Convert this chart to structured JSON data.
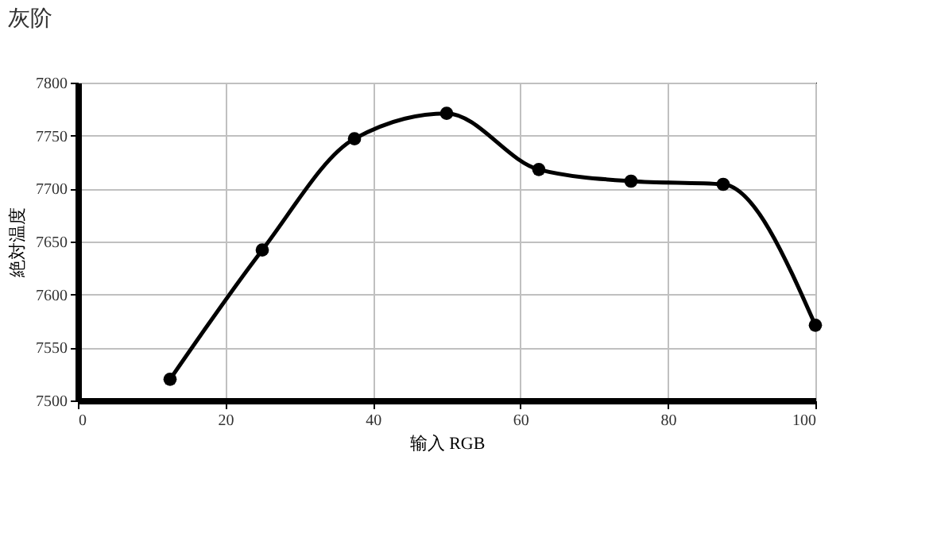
{
  "chart_data": {
    "type": "line",
    "title": "灰阶",
    "xlabel": "输入 RGB",
    "ylabel": "絶対温度",
    "x": [
      12.5,
      25,
      37.5,
      50,
      62.5,
      75,
      87.5,
      100
    ],
    "series": [
      {
        "color": "#000000",
        "values": [
          7520,
          7642,
          7747,
          7771,
          7718,
          7707,
          7704,
          7571
        ]
      }
    ],
    "xlim": [
      0,
      100
    ],
    "xticks": [
      0,
      20,
      40,
      60,
      80,
      100
    ],
    "ylim": [
      7500,
      7800
    ],
    "yticks": [
      7500,
      7550,
      7600,
      7650,
      7700,
      7750,
      7800
    ],
    "grid": true,
    "marker": "circle",
    "line_style": "solid"
  }
}
